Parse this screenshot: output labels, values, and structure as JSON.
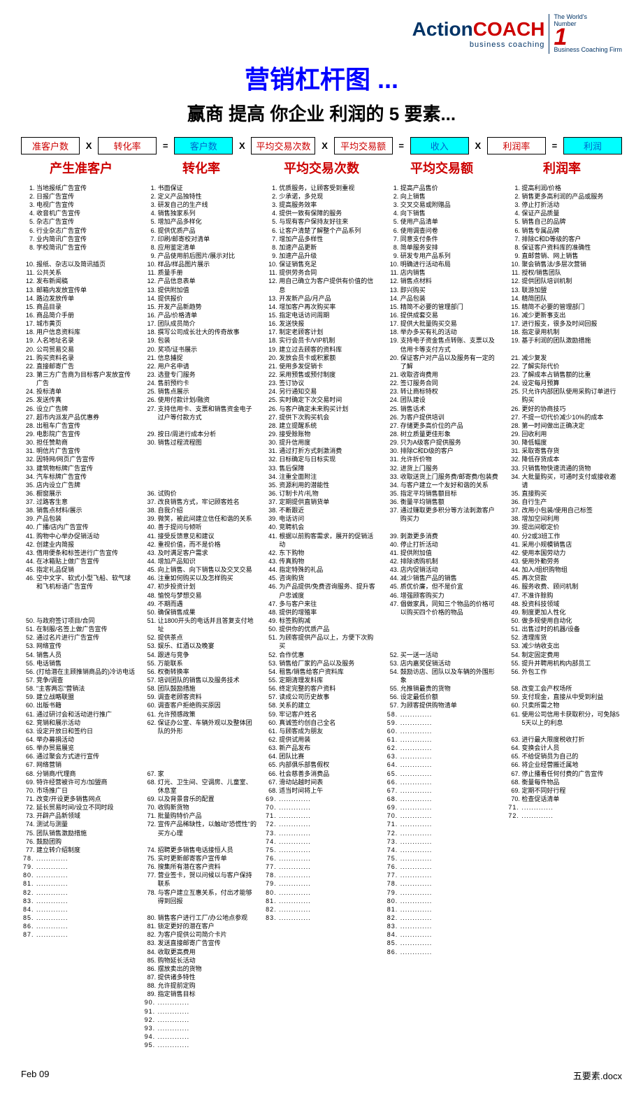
{
  "logo": {
    "a": "Action",
    "b": "COACH",
    "sub": "business coaching",
    "badge1": "The World's",
    "badge2": "Number",
    "badge3": "Business Coaching",
    "badge4": "Firm"
  },
  "title": "营销杠杆图 ...",
  "subtitle": "赢商 提高 你企业 利润的 5 要素...",
  "formula": [
    {
      "t": "准客户数",
      "cls": "c-red"
    },
    {
      "t": "X",
      "op": 1
    },
    {
      "t": "转化率",
      "cls": "c-red"
    },
    {
      "t": "=",
      "op": 1
    },
    {
      "t": "客户数",
      "cls": "c-blue bg-cyan"
    },
    {
      "t": "X",
      "op": 1
    },
    {
      "t": "平均交易次数",
      "cls": "c-red"
    },
    {
      "t": "X",
      "op": 1
    },
    {
      "t": "平均交易额",
      "cls": "c-red"
    },
    {
      "t": "=",
      "op": 1
    },
    {
      "t": "收入",
      "cls": "c-blue bg-cyan"
    },
    {
      "t": "X",
      "op": 1
    },
    {
      "t": "利润率",
      "cls": "c-red"
    },
    {
      "t": "=",
      "op": 1
    },
    {
      "t": "利润",
      "cls": "c-blue bg-cyan"
    }
  ],
  "headers": [
    "产生准客户",
    "转化率",
    "平均交易次数",
    "平均交易额",
    "利润率"
  ],
  "col1": [
    "当地报纸广告宣传",
    "日报广告宣传",
    "电视广告宣传",
    "收音机广告宣传",
    "杂志广告宣传",
    "行业杂志广告宣传",
    "业内简讯广告宣传",
    "学校简讯广告宣传",
    "",
    "报纸、杂志以及简讯插页",
    "公共关系",
    "发布新闻稿",
    "邮箱内发放宣传单",
    "路边发放传单",
    "商品目录",
    "商品简介手册",
    "城市黄页",
    "用户信息资料库",
    "人名地址名录",
    "公司贸易交易",
    "购买资料名录",
    "直接邮寄广告",
    "第三方广告商为目标客户发放宣传广告",
    "投标清单",
    "发送传真",
    "设立广告牌",
    "超市内派发产品优惠券",
    "出租车广告宣传",
    "电影院广告宣传",
    "担任赞助商",
    "明信片广告宣传",
    "因特网/网页广告宣传",
    "建筑物标牌广告宣传",
    "汽车标牌广告宣传",
    "店内设立广告牌",
    "橱窗展示",
    "过路客生意",
    "销售点材料/展示",
    "产品包装",
    "广播/店内广告宣传",
    "购物中心举办促销活动",
    "创建业内简报",
    "借用便条和标签进行广告宣传",
    "在冰箱贴上做广告宣传",
    "指定礼品促销",
    "空中文字、软式小型飞船、软气球和飞机标语广告宣传",
    "",
    "",
    "",
    "与政府签订项目/合同",
    "在制服/名签上做广告宣传",
    "通过名片进行广告宣传",
    "网络宣传",
    "销售人员",
    "电话销售",
    "(打给潜在主顾推销商品的)冷访电话",
    "竞争/调查",
    "\"主客两忘\"营销法",
    "建立战略联盟",
    "出版书籍",
    "通过研讨会和活动进行推广",
    "竞销和展示活动",
    "设定开放日和签约日",
    "举办募捐活动",
    "举办贸易展览",
    "通过聚会方式进行宣传",
    "网络营销",
    "分销商/代理商",
    "特许经营被许可方/加盟商",
    "市场推广日",
    "改变/开设更多销售网点",
    "延长贸易时间/设立不同时段",
    "开辟产品新领域",
    "测试与测量",
    "团队销售激励措施",
    "鼓励团购",
    "建立转介绍制度",
    ".............",
    ".............",
    ".............",
    ".............",
    ".............",
    ".............",
    ".............",
    ".............",
    ".............",
    "............."
  ],
  "col2": [
    "书面保证",
    "定义产品独特性",
    "研发自己的生产线",
    "销售独家系列",
    "增加产品多样化",
    "提供优质产品",
    "印刷/邮寄校对清单",
    "应用鉴定清单",
    "产品使用前后图片/展示对比",
    "样品/样品图片展示",
    "质量手册",
    "产品信息表单",
    "提供附加值",
    "提供报价",
    "开发产品新趋势",
    "产品/价格清单",
    "团队成员简介",
    "撰写公司成长壮大的传奇故事",
    "包装",
    "奖项/证书展示",
    "信息捕捉",
    "用户名申请",
    "选登专门服务",
    "售前预约卡",
    "销售点展示",
    "使用付款计划/融资",
    "支持信用卡、支票和销售资金电子过户等付款方式",
    "",
    "按日/周进行成本分析",
    "销售过程流程图",
    "",
    "",
    "",
    "",
    "",
    "试购价",
    "改良销售方式，牢记顾客姓名",
    "自我介绍",
    "微笑，被此间建立信任和谐的关系",
    "善于提问与倾听",
    "接受反馈意见和建议",
    "重视价值，而不是价格",
    "及时满足客户需求",
    "增加产品知识",
    "向上销售、向下销售以及交叉交易",
    "注重如何购买以及怎样购买",
    "初步投资计划",
    "愉悦与梦想交易",
    "不期而遇",
    "确保销售成果",
    "让1800开头的电话并且答复支付地址",
    "提供茶点",
    "娱乐、红酒以及晚宴",
    "跟进与竞争",
    "万能联系",
    "权衡转换率",
    "培训团队的销售以及服务技术",
    "团队鼓励措施",
    "调查老顾客资料",
    "调查客户拒绝购买原因",
    "允许预感政策",
    "保证办公室、车辆外观以及整体团队的外形",
    "",
    "",
    "",
    "",
    "家",
    "灯光、卫生间、空调房、儿童室、休息室",
    "以及背景音乐的配置",
    "收购新货物",
    "批量购特价产品",
    "宣传产品稀缺性，以触动\"恐慌性\"的买方心理",
    "",
    "招聘更多销售电话接恒人员",
    "实时更新邮寄客户宣传单",
    "搜集所有潜在客户资料",
    "营业签卡，贺以问候以与客户保持联系",
    "与客户建立互惠关系，付出才能够得到回报",
    "",
    "销售客户进行工厂/办公地点参观",
    "锁定更好的潜在客户",
    "为客户提供公司简介卡片",
    "发送直接邮寄广告宣传",
    "收取更高费用",
    "购物延长活动",
    "摆放卖出的货物",
    "提供诸多特性",
    "允许提前定购",
    "指定销售目标",
    ".............",
    ".............",
    ".............",
    ".............",
    ".............",
    "............."
  ],
  "col3": [
    "优质服务，让顾客受到重视",
    "少承诺，多兑现",
    "提高服务效率",
    "提供一致有保障的服务",
    "与现有客户保持友好往来",
    "让客户清楚了解整个产品系列",
    "增加产品多样性",
    "加速产品更新",
    "加速产品升级",
    "保证销售充足",
    "提供劳务合同",
    "用自己确立为客户提供有价值的信息",
    "开发新产品/月产品",
    "增加客户再次购买率",
    "指定电话访问周期",
    "发送快报",
    "制定老顾客计划",
    "实行会员卡/VIP机制",
    "建立过去顾客的资料库",
    "发放会员卡或积累额",
    "使用多发促销卡",
    "采用预售或预付制度",
    "签订协议",
    "另行通知交易",
    "实时确定下次交易时间",
    "与客户确定未来购买计划",
    "提供下次购买机会",
    "建立提醒系统",
    "接受赊账物",
    "提升信用度",
    "通过打折方式刺激消费",
    "日标确定与日标实现",
    "售后保障",
    "注重全面附注",
    "资源利用的潜能性",
    "订制卡片/礼物",
    "定期提供直销货单",
    "不断跟近",
    "电话访问",
    "竞聘机会",
    "根据以前购客需求，展开的促销活动",
    "东下购物",
    "传真购物",
    "指定特殊的礼品",
    "咨询购货",
    "为产品提供/免费咨询服务、提升客户忠诚度",
    "",
    "",
    "",
    "",
    "",
    "",
    "",
    "",
    "",
    "",
    "",
    "",
    "",
    "",
    "",
    "",
    "",
    "",
    "",
    "",
    "",
    "",
    "",
    "",
    "",
    "",
    "",
    "",
    "",
    "",
    "",
    "",
    "",
    "",
    "",
    "",
    ""
  ],
  "col3b": [
    "多与客户来往",
    "提供的增殖率",
    "标签购购减",
    "提供你的优质产品",
    "为顾客提供产品以上，方便下次购买",
    "合作优惠",
    "销售给厂家的产品以及服务",
    "租售/销售给客户资料库",
    "定期清理发料库",
    "终定完整的客户资料",
    "读成公司历史故事",
    "关系的建立",
    "牢记客户姓名",
    "真诚签约创自己全名",
    "与顾客成为朋友",
    "提供试用装",
    "新产品发布",
    "团队比赛",
    "内部俱乐部售假权",
    "社会慈善多消费品",
    "滑动站越时间表",
    "适当时间将上午",
    "............."
  ],
  "col4": [
    "提高产品售价",
    "向上销售",
    "交叉交易或附赠品",
    "向下销售",
    "使用产品清单",
    "使用调查问卷",
    "同意支付条件",
    "简单服务安排",
    "研发专用产品系列",
    "明确进行活动布局",
    "店内销售",
    "销售点材料",
    "即兴购买",
    "产品包装",
    "精简不必要的管理部门",
    "提供成套交易",
    "提供大批量购买交易",
    "举办多买有礼的活动",
    "支持电子资金售点转账、支票以及信用卡等支付方式",
    "",
    "",
    "",
    "",
    "",
    "",
    "",
    "",
    "",
    "",
    "",
    "",
    "",
    "",
    "",
    "",
    "",
    "",
    "",
    "",
    "",
    "",
    "",
    "",
    "",
    "",
    "",
    "",
    "",
    "",
    "",
    "",
    "",
    "",
    "",
    "",
    "",
    "",
    "",
    "",
    "",
    "",
    "",
    "",
    "",
    "",
    "",
    "",
    "",
    "",
    "",
    "",
    "",
    "",
    "",
    "",
    "",
    "",
    "",
    "",
    "",
    "",
    "",
    "",
    "",
    "",
    ""
  ],
  "col4b": [
    "保证客户对产品以及服务有一定的了解",
    "收取咨询费用",
    "签订服务合同",
    "转让商标特权",
    "团队建设",
    "销售话术",
    "为客户提供培训",
    "存储更多高价位的产品",
    "树立质量更佳形象",
    "只为A级客户提供服务",
    "排除C和D级的客户",
    "允许折价物",
    "进货上门服务",
    "收取送货上门服务费/邮寄费/包装费",
    "与客户建立一个友好和谐的关系",
    "指定平均销售额目标",
    "衡量平均销售额",
    "通过赚取更多积分等方法刺激客户购买力",
    "",
    "刺激更多消费",
    "停止打折活动",
    "提供附加值",
    "排除诱购机制",
    "店内促销活动",
    "减少销售产品的销售",
    "质优价廉，但不是价宜",
    "增强顾客购买力",
    "倡做家具，同知三个物品的价格可以购买四个价格的物品",
    "",
    "",
    "",
    "",
    "买一送一活动",
    "店内嘉奖促销活动",
    "鼓励访店、团队以及车辆的外围形象",
    "允推销最贵的货物",
    "设定最低价额",
    "为顾客提供购物清单",
    ".............",
    ".............",
    ".............",
    ".............",
    "............."
  ],
  "col5": [
    "提高利润/价格",
    "销售更多高利润的产品或服务",
    "停止打折活动",
    "保证产品质量",
    "销售自己的品牌",
    "销售专属品牌",
    "排除C和D等级的客户",
    "保证客户资料库的准确性",
    "直邮营销、网上销售",
    "聚会销售法/多层次营销",
    "授权/销售团队",
    "提供团队培训机制",
    "联游加盟",
    "精简团队",
    "精简不必要的管理部门",
    "减少更新事支出",
    "进行报支，很多及时间回报",
    "指定录用机制",
    "基于利润的团队激励措施",
    "",
    "减少复发",
    "了解实际代价",
    "了解成本占销售额的比重",
    "设定每月预算",
    "只允许内部团队使用采购订单进行购买",
    "更好的协商技巧",
    "不提一切代价减少10%的成本",
    "第一时间做出正确决定",
    "回收利用",
    "降低幅度",
    "采取寄售存货",
    "降低存货成本",
    "只销售物快速流通的货物",
    "大批量购买，可通时支付或接收邀请",
    "直接购买",
    "自行生产",
    "改用小包装/使用自己标签",
    "增加空间利用",
    "提出间歇定价",
    "分2或3班工作",
    "采用小规模销售店",
    "使用本国劳动力",
    "使用外勤劳务",
    "加入/组织购物组",
    "再次贷款",
    "服务收费、顾问机制",
    "不准许赊购",
    "投资科技领域",
    "制度更加人性化",
    "做多规使用自动化",
    "出售过时的机器/设备",
    "清理库货",
    "减少纳收支出",
    "制定固定费用",
    "提升并聘用机构内部员工",
    "外包工作",
    "",
    "改变工会产权场所",
    "支付现金，直接从中受到利益",
    "只卖所需之物",
    "使用公司信用卡获取积分，可免除55天以上的利息",
    "",
    "进行最大限度税收打折",
    "变换会计人员",
    "不给促销员为自己的",
    "将企业经营搬迁属地",
    "停止播看任何付费的广告宣传",
    "衡量每件物品",
    "定期不同好行程",
    "检查促话清单",
    ".............",
    ".............",
    "",
    "",
    "",
    "",
    "",
    "",
    "",
    "",
    "",
    "",
    "",
    "",
    "",
    "",
    "",
    "",
    "",
    "",
    ""
  ],
  "footer": {
    "left": "Feb 09",
    "right": "五要素.docx"
  },
  "extras": {
    "col2_inline": [
      "音频、视频、CD等销售产品展示",
      "新闻稿转载",
      "将报价单、投标书以及建议书等列至行动计划中",
      "宣传公司愿景",
      "问卷调查",
      "服装要求统一高标准",
      "先试后买的销售方式",
      "店内销售"
    ],
    "col4_inline": [],
    "blank_dots": "............."
  }
}
